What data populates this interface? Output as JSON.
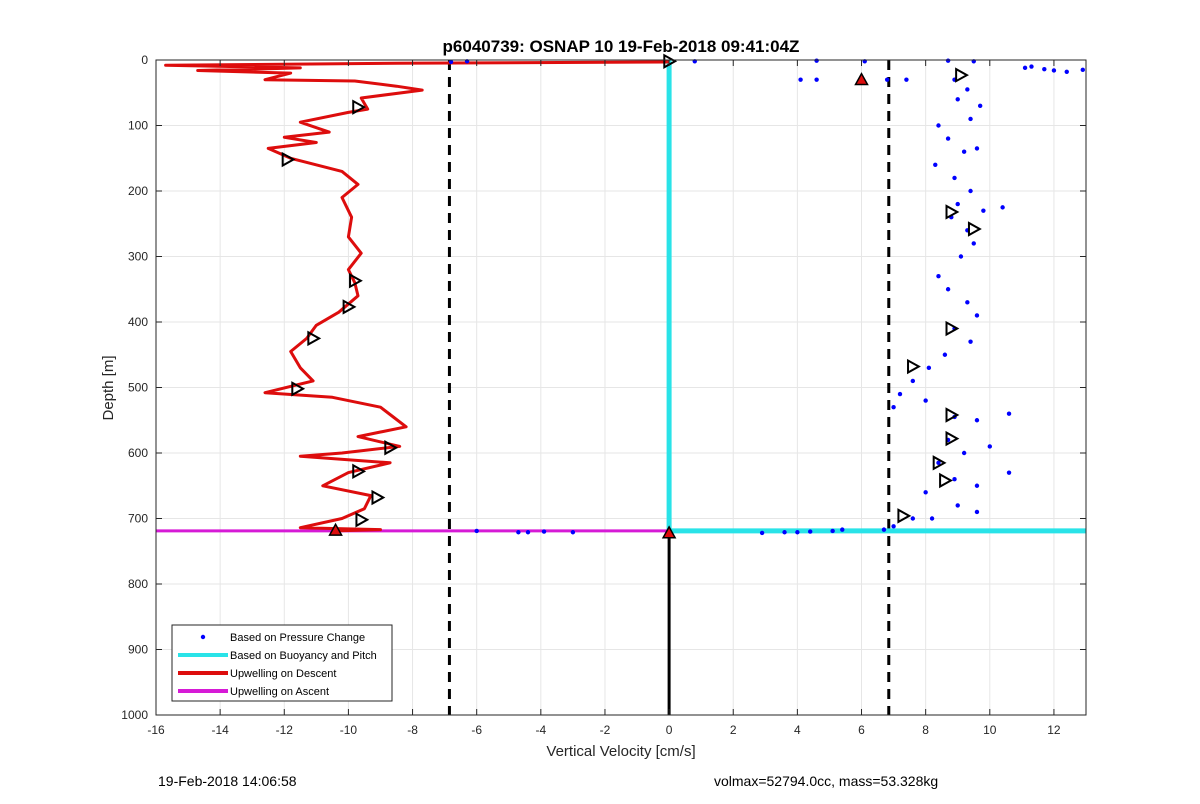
{
  "chart_data": {
    "type": "line",
    "title": "p6040739: OSNAP 10 19-Feb-2018 09:41:04Z",
    "xlabel": "Vertical Velocity [cm/s]",
    "ylabel": "Depth [m]",
    "xlim": [
      -16,
      13
    ],
    "ylim": [
      0,
      1000
    ],
    "y_reversed": true,
    "grid": true,
    "xticks": [
      -16,
      -14,
      -12,
      -10,
      -8,
      -6,
      -4,
      -2,
      0,
      2,
      4,
      6,
      8,
      10,
      12
    ],
    "yticks": [
      0,
      100,
      200,
      300,
      400,
      500,
      600,
      700,
      800,
      900,
      1000
    ],
    "legend_position": "bottom-left",
    "series": [
      {
        "name": "Based on Pressure Change",
        "color": "#0000ff",
        "style": "dots",
        "points": [
          [
            -6.8,
            3
          ],
          [
            -6.3,
            2
          ],
          [
            0.8,
            2
          ],
          [
            4.6,
            1
          ],
          [
            6.1,
            2
          ],
          [
            8.7,
            1
          ],
          [
            9.5,
            2
          ],
          [
            4.1,
            30
          ],
          [
            4.6,
            30
          ],
          [
            6.8,
            30
          ],
          [
            7.4,
            30
          ],
          [
            11.1,
            12
          ],
          [
            11.3,
            10
          ],
          [
            11.7,
            14
          ],
          [
            12.0,
            16
          ],
          [
            12.4,
            18
          ],
          [
            12.9,
            15
          ],
          [
            8.9,
            30
          ],
          [
            9.3,
            45
          ],
          [
            9.0,
            60
          ],
          [
            9.7,
            70
          ],
          [
            9.4,
            90
          ],
          [
            8.4,
            100
          ],
          [
            8.7,
            120
          ],
          [
            9.2,
            140
          ],
          [
            9.6,
            135
          ],
          [
            8.3,
            160
          ],
          [
            8.9,
            180
          ],
          [
            9.4,
            200
          ],
          [
            9.0,
            220
          ],
          [
            9.8,
            230
          ],
          [
            10.4,
            225
          ],
          [
            8.8,
            240
          ],
          [
            9.3,
            260
          ],
          [
            9.5,
            280
          ],
          [
            9.1,
            300
          ],
          [
            8.4,
            330
          ],
          [
            8.7,
            350
          ],
          [
            9.3,
            370
          ],
          [
            9.6,
            390
          ],
          [
            8.9,
            410
          ],
          [
            9.4,
            430
          ],
          [
            8.6,
            450
          ],
          [
            8.1,
            470
          ],
          [
            7.6,
            490
          ],
          [
            7.2,
            510
          ],
          [
            7.0,
            530
          ],
          [
            8.0,
            520
          ],
          [
            8.9,
            545
          ],
          [
            9.6,
            550
          ],
          [
            10.6,
            540
          ],
          [
            8.7,
            580
          ],
          [
            9.2,
            600
          ],
          [
            10.0,
            590
          ],
          [
            8.4,
            615
          ],
          [
            8.9,
            640
          ],
          [
            9.6,
            650
          ],
          [
            10.6,
            630
          ],
          [
            8.0,
            660
          ],
          [
            9.0,
            680
          ],
          [
            9.6,
            690
          ],
          [
            7.6,
            700
          ],
          [
            8.2,
            700
          ],
          [
            7.0,
            712
          ],
          [
            6.7,
            717
          ],
          [
            5.4,
            717
          ],
          [
            5.1,
            719
          ],
          [
            4.4,
            720
          ],
          [
            4.0,
            721
          ],
          [
            3.6,
            721
          ],
          [
            2.9,
            722
          ],
          [
            -3.0,
            721
          ],
          [
            -3.9,
            720
          ],
          [
            -4.4,
            721
          ],
          [
            -4.7,
            721
          ],
          [
            -6.0,
            719
          ]
        ]
      },
      {
        "name": "Based on Buoyancy and Pitch",
        "color": "#29e3e8",
        "style": "line",
        "points": [
          [
            0,
            0
          ],
          [
            0,
            719
          ],
          [
            13,
            719
          ]
        ]
      },
      {
        "name": "Upwelling on Descent",
        "color": "#dd0d0d",
        "style": "line",
        "points": [
          [
            0,
            3
          ],
          [
            -8.5,
            5
          ],
          [
            -15.7,
            8
          ],
          [
            -11.5,
            12
          ],
          [
            -14.7,
            16
          ],
          [
            -11.8,
            20
          ],
          [
            -12.6,
            30
          ],
          [
            -9.8,
            32
          ],
          [
            -8.5,
            40
          ],
          [
            -7.7,
            46
          ],
          [
            -9.6,
            58
          ],
          [
            -9.4,
            75
          ],
          [
            -10.0,
            80
          ],
          [
            -11.5,
            95
          ],
          [
            -10.6,
            110
          ],
          [
            -12.0,
            118
          ],
          [
            -11.0,
            126
          ],
          [
            -12.5,
            135
          ],
          [
            -11.8,
            150
          ],
          [
            -10.2,
            170
          ],
          [
            -9.7,
            190
          ],
          [
            -10.2,
            210
          ],
          [
            -9.9,
            240
          ],
          [
            -10.0,
            270
          ],
          [
            -9.6,
            295
          ],
          [
            -10.0,
            320
          ],
          [
            -9.8,
            340
          ],
          [
            -9.7,
            360
          ],
          [
            -10.3,
            385
          ],
          [
            -11.0,
            405
          ],
          [
            -11.3,
            425
          ],
          [
            -11.8,
            445
          ],
          [
            -11.5,
            470
          ],
          [
            -11.1,
            490
          ],
          [
            -12.6,
            508
          ],
          [
            -10.5,
            515
          ],
          [
            -9.0,
            530
          ],
          [
            -8.6,
            545
          ],
          [
            -8.2,
            560
          ],
          [
            -9.7,
            575
          ],
          [
            -8.4,
            590
          ],
          [
            -10.2,
            600
          ],
          [
            -11.5,
            605
          ],
          [
            -8.7,
            615
          ],
          [
            -10.0,
            630
          ],
          [
            -10.8,
            650
          ],
          [
            -9.3,
            665
          ],
          [
            -9.5,
            685
          ],
          [
            -10.2,
            700
          ],
          [
            -11.5,
            714
          ],
          [
            -9.0,
            717
          ],
          [
            -10.4,
            719
          ]
        ]
      },
      {
        "name": "Upwelling on Ascent",
        "color": "#d61ad6",
        "style": "line",
        "points": [
          [
            -16,
            719
          ],
          [
            0,
            719
          ]
        ]
      }
    ],
    "reference_lines": {
      "dashed_vertical_x": [
        -6.85,
        6.85
      ],
      "solid_vertical": {
        "x": 0,
        "y_from": 719,
        "y_to": 1000
      },
      "line_color": "#000000"
    },
    "markers": {
      "triangles_red": [
        [
          6.0,
          30
        ],
        [
          0,
          722
        ],
        [
          -10.4,
          718
        ]
      ],
      "triangles_open": [
        [
          0,
          2
        ],
        [
          9.1,
          23
        ],
        [
          -9.7,
          72
        ],
        [
          -11.9,
          152
        ],
        [
          8.8,
          232
        ],
        [
          9.5,
          258
        ],
        [
          -9.8,
          337
        ],
        [
          -10.0,
          377
        ],
        [
          8.8,
          410
        ],
        [
          -11.1,
          425
        ],
        [
          7.6,
          468
        ],
        [
          -11.6,
          502
        ],
        [
          8.8,
          542
        ],
        [
          8.8,
          578
        ],
        [
          -8.7,
          592
        ],
        [
          8.4,
          615
        ],
        [
          -9.7,
          628
        ],
        [
          8.6,
          642
        ],
        [
          -9.1,
          668
        ],
        [
          -9.6,
          702
        ],
        [
          7.3,
          696
        ]
      ]
    }
  },
  "footer": {
    "left": "19-Feb-2018 14:06:58",
    "right": "volmax=52794.0cc, mass=53.328kg"
  }
}
